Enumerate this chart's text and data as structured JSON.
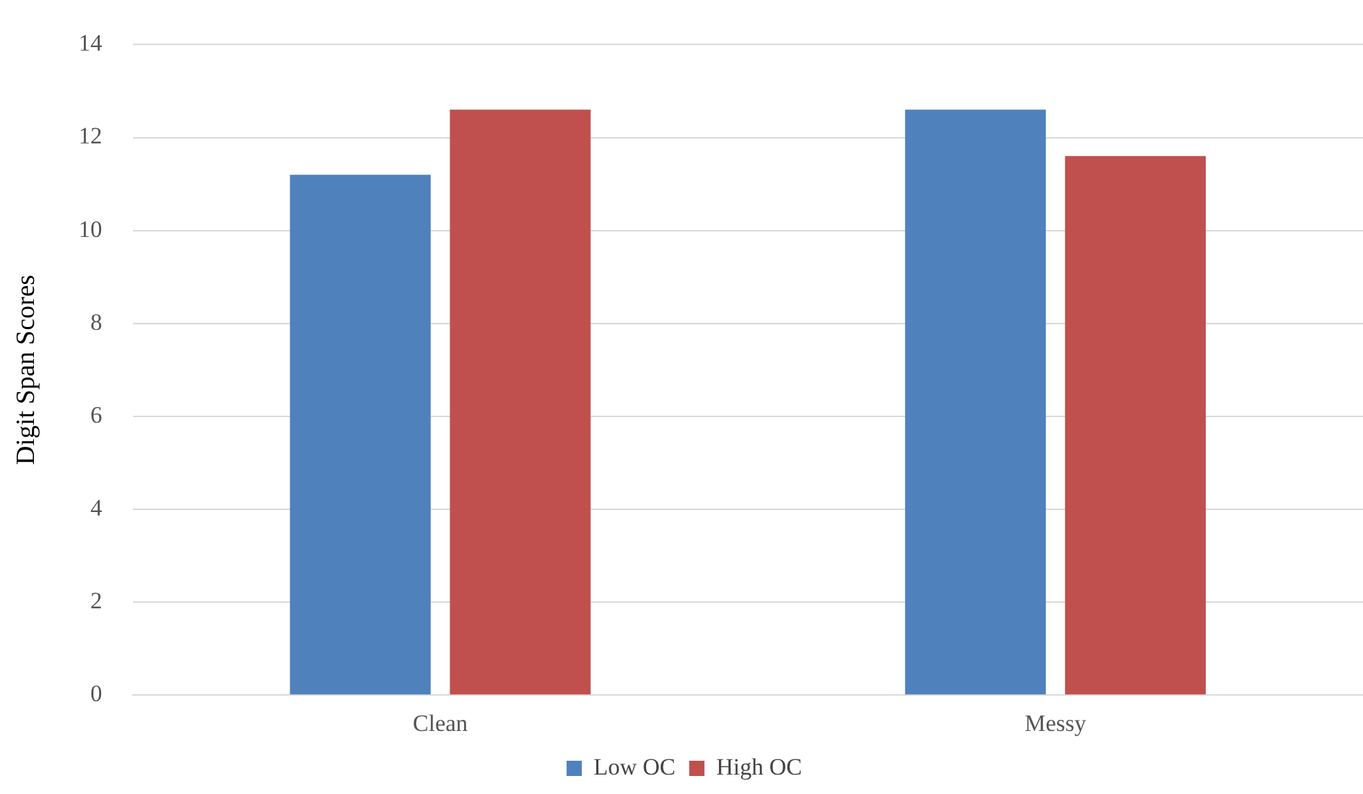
{
  "chart_data": {
    "type": "bar",
    "ylabel": "Digit Span Scores",
    "categories": [
      "Clean",
      "Messy"
    ],
    "series": [
      {
        "name": "Low OC",
        "color": "#4f81bd",
        "values": [
          11.2,
          12.6
        ]
      },
      {
        "name": "High OC",
        "color": "#c0504d",
        "values": [
          12.6,
          11.6
        ]
      }
    ],
    "ylim": [
      0,
      14
    ],
    "yticks": [
      0,
      2,
      4,
      6,
      8,
      10,
      12,
      14
    ],
    "grid": "y",
    "legend": "bottom"
  }
}
